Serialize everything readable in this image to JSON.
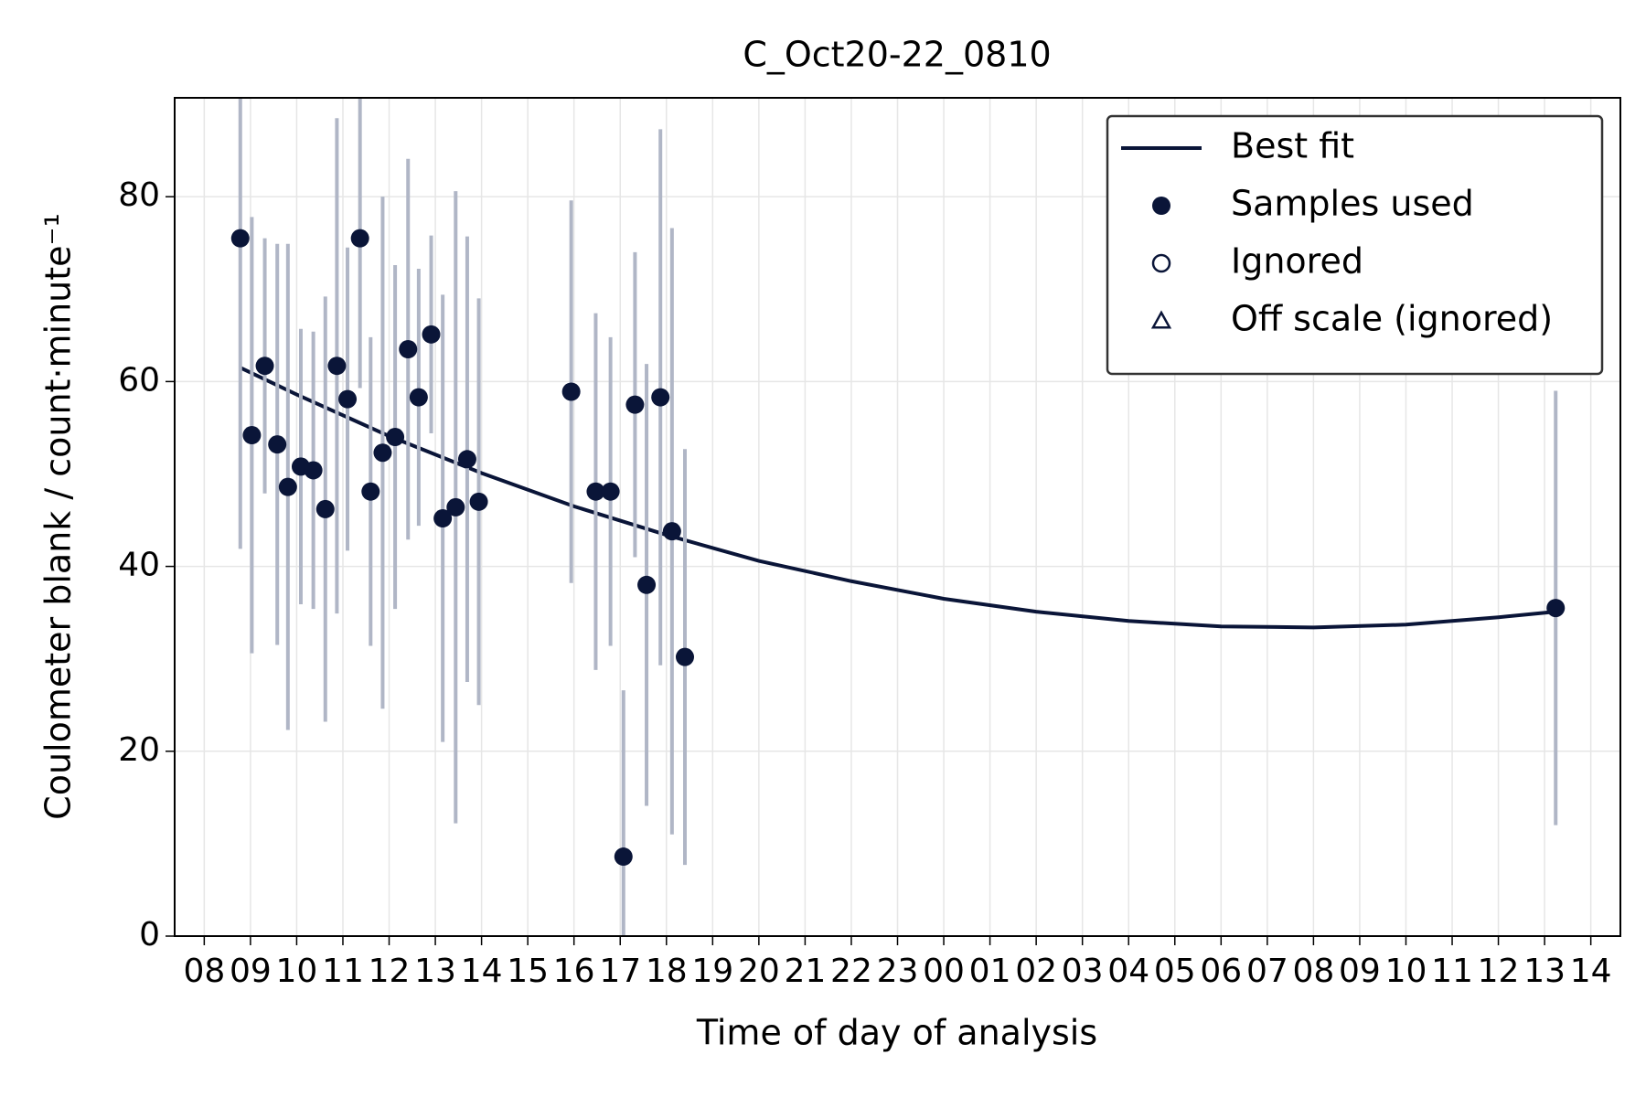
{
  "chart_data": {
    "type": "scatter",
    "title": "C_Oct20-22_0810",
    "xlabel": "Time of day of analysis",
    "ylabel": "Coulometer blank / count·minute⁻¹",
    "xlim": [
      7.36,
      38.64
    ],
    "ylim": [
      0,
      90.7
    ],
    "xticks": [
      {
        "value": 8,
        "label": "08"
      },
      {
        "value": 9,
        "label": "09"
      },
      10,
      11,
      12,
      13,
      14,
      15,
      16,
      17,
      18,
      19,
      20,
      21,
      22,
      23,
      {
        "value": 24,
        "label": "00"
      },
      {
        "value": 25,
        "label": "01"
      },
      {
        "value": 26,
        "label": "02"
      },
      {
        "value": 27,
        "label": "03"
      },
      {
        "value": 28,
        "label": "04"
      },
      {
        "value": 29,
        "label": "05"
      },
      {
        "value": 30,
        "label": "06"
      },
      {
        "value": 31,
        "label": "07"
      },
      {
        "value": 32,
        "label": "08"
      },
      {
        "value": 33,
        "label": "09"
      },
      {
        "value": 34,
        "label": "10"
      },
      {
        "value": 35,
        "label": "11"
      },
      {
        "value": 36,
        "label": "12"
      },
      {
        "value": 37,
        "label": "13"
      },
      {
        "value": 38,
        "label": "14"
      }
    ],
    "yticks": [
      0,
      20,
      40,
      60,
      80
    ],
    "grid": true,
    "legend": "upper right",
    "series": [
      {
        "name": "Best fit",
        "kind": "line",
        "color": "#0a1538",
        "x": [
          8.78,
          10,
          12,
          14,
          16,
          18,
          20,
          22,
          24,
          26,
          28,
          30,
          32,
          34,
          36,
          37.24
        ],
        "values": [
          61.5,
          58.6,
          54.1,
          50.1,
          46.5,
          43.4,
          40.6,
          38.4,
          36.5,
          35.1,
          34.1,
          33.5,
          33.4,
          33.7,
          34.5,
          35.1
        ]
      },
      {
        "name": "Samples used",
        "kind": "filled-circle",
        "color": "#0a1538",
        "error_color": "#b0b6c6",
        "x": [
          8.78,
          9.03,
          9.31,
          9.58,
          9.81,
          10.09,
          10.36,
          10.62,
          10.87,
          11.1,
          11.37,
          11.6,
          11.86,
          12.13,
          12.41,
          12.64,
          12.91,
          13.16,
          13.44,
          13.69,
          13.94,
          15.94,
          16.47,
          16.79,
          17.07,
          17.32,
          17.57,
          17.87,
          18.12,
          18.4,
          37.24
        ],
        "values": [
          75.5,
          54.2,
          61.7,
          53.2,
          48.6,
          50.8,
          50.4,
          46.2,
          61.7,
          58.1,
          75.5,
          48.1,
          52.3,
          54.0,
          63.5,
          58.3,
          65.1,
          45.2,
          46.4,
          51.6,
          47.0,
          58.9,
          48.1,
          48.1,
          8.6,
          57.5,
          38.0,
          58.3,
          43.8,
          30.2,
          35.5
        ],
        "errors": [
          33.6,
          23.6,
          13.8,
          21.7,
          26.3,
          14.9,
          15.0,
          23.0,
          26.8,
          16.4,
          16.2,
          16.7,
          27.7,
          18.6,
          20.6,
          13.9,
          10.7,
          24.2,
          34.2,
          24.1,
          22.0,
          20.7,
          19.3,
          16.7,
          18.0,
          16.5,
          23.9,
          29.0,
          32.8,
          22.5,
          23.5
        ]
      },
      {
        "name": "Ignored",
        "kind": "open-circle",
        "color": "#0a1538",
        "x": [],
        "values": []
      },
      {
        "name": "Off scale (ignored)",
        "kind": "open-triangle",
        "color": "#0a1538",
        "x": [],
        "values": []
      }
    ]
  }
}
